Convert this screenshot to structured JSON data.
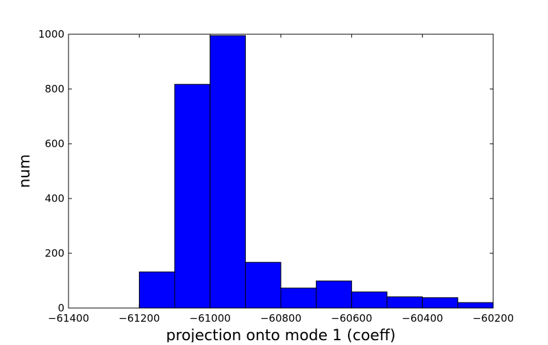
{
  "chart_data": {
    "type": "bar",
    "title": "",
    "xlabel": "projection onto mode 1 (coeff)",
    "ylabel": "num",
    "xlim": [
      -61400,
      -60200
    ],
    "ylim": [
      0,
      1000
    ],
    "xticks": [
      -61400,
      -61200,
      -61000,
      -60800,
      -60600,
      -60400,
      -60200
    ],
    "xtick_labels": [
      "−61400",
      "−61200",
      "−61000",
      "−60800",
      "−60600",
      "−60400",
      "−60200"
    ],
    "yticks": [
      0,
      200,
      400,
      600,
      800,
      1000
    ],
    "ytick_labels": [
      "0",
      "200",
      "400",
      "600",
      "800",
      "1000"
    ],
    "bin_edges": [
      -61200,
      -61100,
      -61000,
      -60900,
      -60800,
      -60700,
      -60600,
      -60500,
      -60400,
      -60300,
      -60200
    ],
    "values": [
      132,
      817,
      995,
      167,
      73,
      99,
      59,
      41,
      38,
      20
    ],
    "bar_color": "#0000ff",
    "edge_color": "#000000",
    "grid": false
  }
}
